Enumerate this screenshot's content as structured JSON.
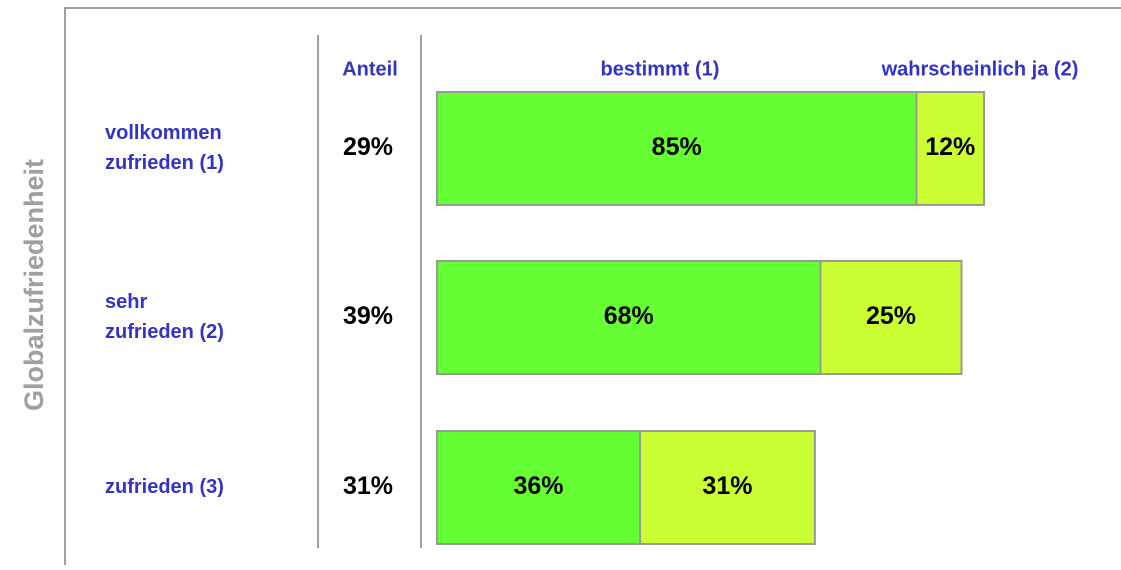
{
  "chart_data": {
    "type": "stacked-bar",
    "orientation": "horizontal",
    "y_label": "Globalzufriedenheit",
    "categories": [
      [
        "vollkommen",
        "zufrieden (1)"
      ],
      [
        "sehr",
        "zufrieden (2)"
      ],
      [
        "zufrieden (3)"
      ]
    ],
    "share": {
      "name": "Anteil",
      "values": [
        29,
        39,
        31
      ],
      "value_labels": [
        "29%",
        "39%",
        "31%"
      ]
    },
    "series": [
      {
        "name": "bestimmt (1)",
        "color": "#66ff33",
        "values": [
          85,
          68,
          36
        ],
        "value_labels": [
          "85%",
          "68%",
          "36%"
        ]
      },
      {
        "name": "wahrscheinlich ja (2)",
        "color": "#ccff33",
        "values": [
          12,
          25,
          31
        ],
        "value_labels": [
          "12%",
          "25%",
          "31%"
        ]
      }
    ],
    "xlim": [
      0,
      100
    ]
  }
}
